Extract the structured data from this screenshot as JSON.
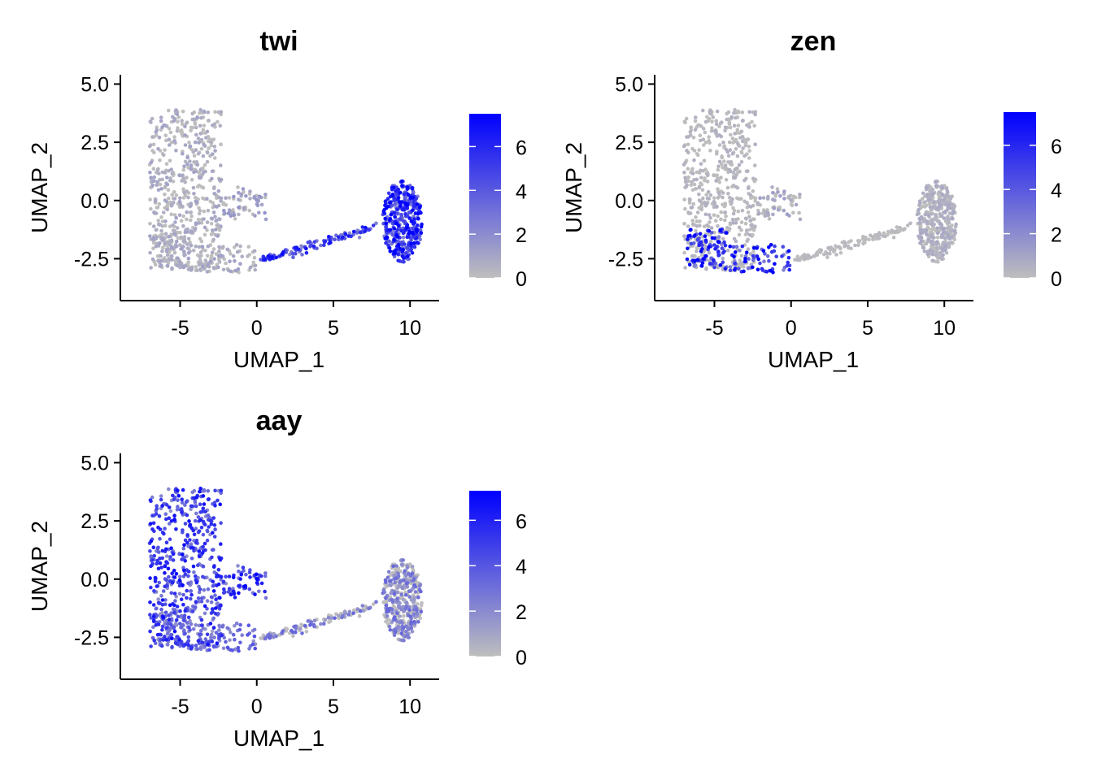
{
  "chart_data": [
    {
      "type": "scatter",
      "title": "twi",
      "xlabel": "UMAP_1",
      "ylabel": "UMAP_2",
      "xlim": [
        -8.9,
        11.9
      ],
      "ylim": [
        -4.3,
        5.4
      ],
      "xticks": [
        -5,
        0,
        5,
        10
      ],
      "xtick_labels": [
        "-5",
        "0",
        "5",
        "10"
      ],
      "yticks": [
        5.0,
        2.5,
        0.0,
        -2.5
      ],
      "ytick_labels": [
        "5.0",
        "2.5",
        "0.0",
        "-2.5"
      ],
      "color_low": "#bebebe",
      "color_high": "#0000ff",
      "legend": {
        "position": "right",
        "max": 7.5,
        "ticks": [
          0,
          2,
          4,
          6
        ],
        "tick_labels": [
          "0",
          "2",
          "4",
          "6"
        ]
      },
      "expression_pattern": {
        "left_group": 0.8,
        "mid_arm": 1.2,
        "lower_left": 0.8,
        "trajectory": 5.0,
        "right_cluster": 5.6
      }
    },
    {
      "type": "scatter",
      "title": "zen",
      "xlabel": "UMAP_1",
      "ylabel": "UMAP_2",
      "xlim": [
        -8.9,
        11.9
      ],
      "ylim": [
        -4.3,
        5.4
      ],
      "xticks": [
        -5,
        0,
        5,
        10
      ],
      "xtick_labels": [
        "-5",
        "0",
        "5",
        "10"
      ],
      "yticks": [
        5.0,
        2.5,
        0.0,
        -2.5
      ],
      "ytick_labels": [
        "5.0",
        "2.5",
        "0.0",
        "-2.5"
      ],
      "color_low": "#bebebe",
      "color_high": "#0000ff",
      "legend": {
        "position": "right",
        "max": 7.5,
        "ticks": [
          0,
          2,
          4,
          6
        ],
        "tick_labels": [
          "0",
          "2",
          "4",
          "6"
        ]
      },
      "expression_pattern": {
        "left_group": 0.4,
        "mid_arm": 0.9,
        "lower_left": 6.0,
        "trajectory": 0.2,
        "right_cluster": 0.6
      }
    },
    {
      "type": "scatter",
      "title": "aay",
      "xlabel": "UMAP_1",
      "ylabel": "UMAP_2",
      "xlim": [
        -8.9,
        11.9
      ],
      "ylim": [
        -4.3,
        5.4
      ],
      "xticks": [
        -5,
        0,
        5,
        10
      ],
      "xtick_labels": [
        "-5",
        "0",
        "5",
        "10"
      ],
      "yticks": [
        5.0,
        2.5,
        0.0,
        -2.5
      ],
      "ytick_labels": [
        "5.0",
        "2.5",
        "0.0",
        "-2.5"
      ],
      "color_low": "#bebebe",
      "color_high": "#0000ff",
      "legend": {
        "position": "right",
        "max": 7.3,
        "ticks": [
          0,
          2,
          4,
          6
        ],
        "tick_labels": [
          "0",
          "2",
          "4",
          "6"
        ]
      },
      "expression_pattern": {
        "left_group": 4.8,
        "mid_arm": 5.2,
        "lower_left": 3.0,
        "trajectory": 2.5,
        "right_cluster": 2.4
      }
    }
  ]
}
